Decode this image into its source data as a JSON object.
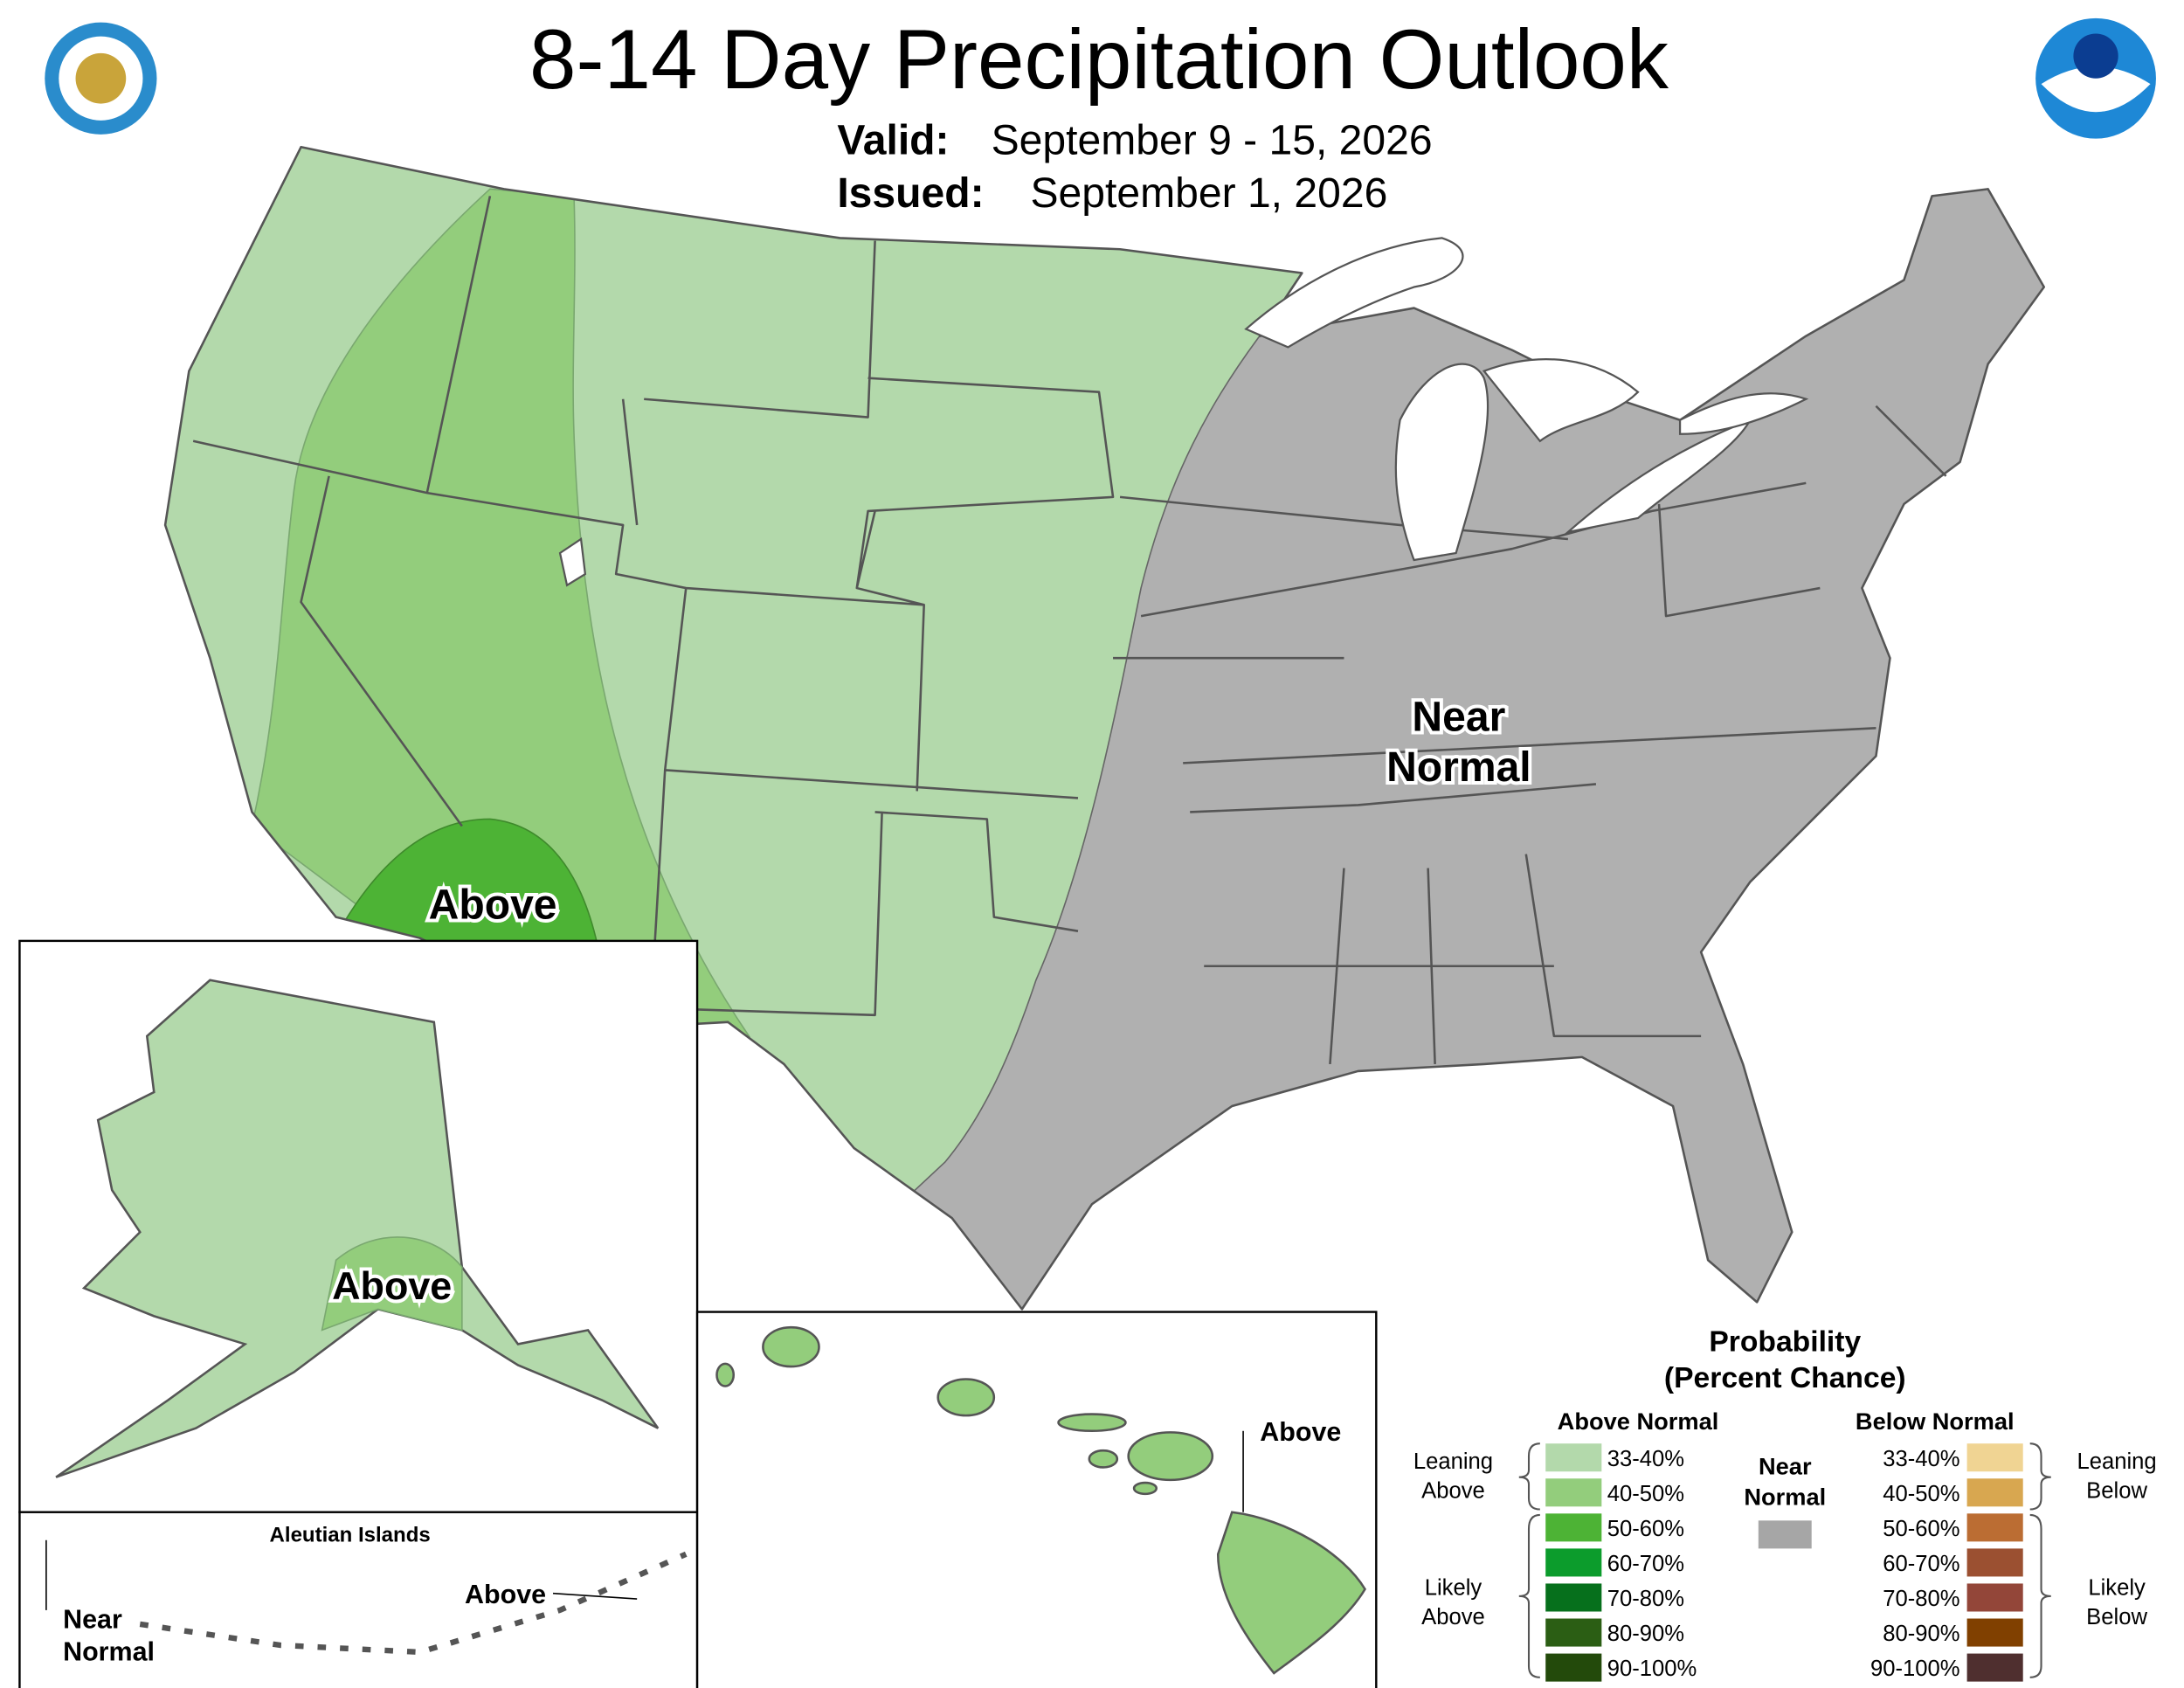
{
  "header": {
    "title": "8-14 Day Precipitation Outlook",
    "valid_label": "Valid:",
    "valid": "September 9 - 15, 2026",
    "issued_label": "Issued:",
    "issued": "September 1, 2026"
  },
  "map": {
    "conus_above": "Above",
    "conus_near": [
      "Near",
      "Normal"
    ],
    "alaska_above": "Above",
    "aleutian_title": "Aleutian Islands",
    "aleutian_above": "Above",
    "aleutian_near": [
      "Near",
      "Normal"
    ],
    "hawaii_above": "Above"
  },
  "legend": {
    "title": [
      "Probability",
      "(Percent Chance)"
    ],
    "above_heading": "Above Normal",
    "below_heading": "Below Normal",
    "near": [
      "Near",
      "Normal"
    ],
    "near_color": "#a6a6a6",
    "above_items": [
      {
        "label": "33-40%",
        "color": "#b3d9ab"
      },
      {
        "label": "40-50%",
        "color": "#93cd7c"
      },
      {
        "label": "50-60%",
        "color": "#4db335"
      },
      {
        "label": "60-70%",
        "color": "#0c9c2c"
      },
      {
        "label": "70-80%",
        "color": "#06701c"
      },
      {
        "label": "80-90%",
        "color": "#2b5e14"
      },
      {
        "label": "90-100%",
        "color": "#234a0b"
      }
    ],
    "below_items": [
      {
        "label": "33-40%",
        "color": "#f0d493"
      },
      {
        "label": "40-50%",
        "color": "#d8a750"
      },
      {
        "label": "50-60%",
        "color": "#bb6d33"
      },
      {
        "label": "60-70%",
        "color": "#9b5031"
      },
      {
        "label": "70-80%",
        "color": "#934639"
      },
      {
        "label": "80-90%",
        "color": "#804000"
      },
      {
        "label": "90-100%",
        "color": "#4f2f2f"
      }
    ],
    "leaning_above": [
      "Leaning",
      "Above"
    ],
    "likely_above": [
      "Likely",
      "Above"
    ],
    "leaning_below": [
      "Leaning",
      "Below"
    ],
    "likely_below": [
      "Likely",
      "Below"
    ]
  }
}
